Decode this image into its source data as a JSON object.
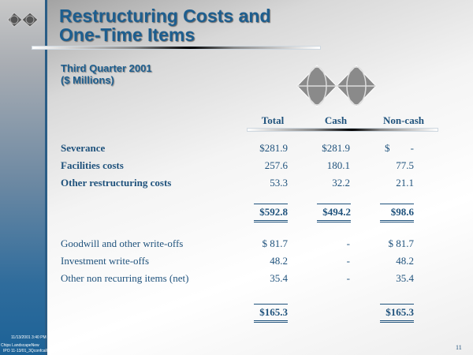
{
  "title": {
    "line1": "Restructuring Costs and",
    "line2": "One-Time Items"
  },
  "subtitle": {
    "line1": "Third Quarter 2001",
    "line2": "($ Millions)"
  },
  "columns": [
    "Total",
    "Cash",
    "Non-cash"
  ],
  "section1": [
    {
      "label": "Severance",
      "total": "$281.9",
      "cash": "$281.9",
      "noncash_prefix": "$",
      "noncash": "-"
    },
    {
      "label": "Facilities costs",
      "total": "257.6",
      "cash": "180.1",
      "noncash": "77.5"
    },
    {
      "label": "Other restructuring costs",
      "total": "53.3",
      "cash": "32.2",
      "noncash": "21.1"
    }
  ],
  "section1_total": {
    "total": "$592.8",
    "cash": "$494.2",
    "noncash": "$98.6"
  },
  "section2": [
    {
      "label": "Goodwill and other write-offs",
      "total": "$ 81.7",
      "cash": "-",
      "noncash": "$ 81.7"
    },
    {
      "label": "Investment write-offs",
      "total": "48.2",
      "cash": "-",
      "noncash": "48.2"
    },
    {
      "label": "Other non recurring items (net)",
      "total": "35.4",
      "cash": "-",
      "noncash": "35.4"
    }
  ],
  "section2_total": {
    "total": "$165.3",
    "noncash": "$165.3"
  },
  "footer": {
    "timestamp": "11/13/2001 3:40 PM",
    "line2": "Chips LandscapeNew",
    "line3": "IPO 11-13/01_3Qconfcall"
  },
  "page_number": "11"
}
